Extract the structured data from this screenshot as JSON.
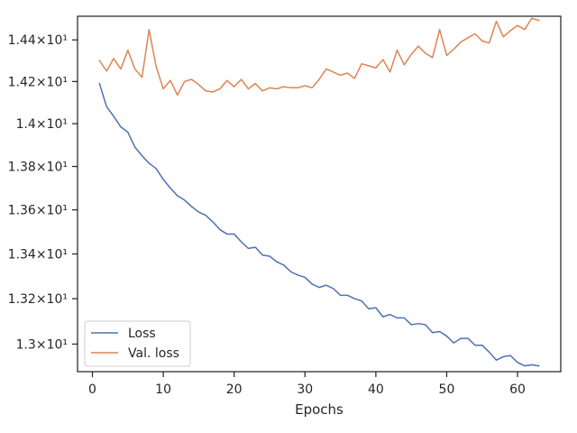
{
  "chart_data": {
    "type": "line",
    "title": "",
    "xlabel": "Epochs",
    "ylabel": "",
    "xlim": [
      -2.1,
      66.1
    ],
    "ylim": [
      12.88,
      14.515
    ],
    "y_scale": "log",
    "grid": false,
    "legend_position": "lower-left",
    "x_ticks": [
      0,
      10,
      20,
      30,
      40,
      50,
      60
    ],
    "x_tick_labels": [
      "0",
      "10",
      "20",
      "30",
      "40",
      "50",
      "60"
    ],
    "y_ticks": [
      13.0,
      13.2,
      13.4,
      13.6,
      13.8,
      14.0,
      14.2,
      14.4
    ],
    "y_tick_labels": [
      "1.3×10¹",
      "1.32×10¹",
      "1.34×10¹",
      "1.36×10¹",
      "1.38×10¹",
      "1.4×10¹",
      "1.42×10¹",
      "1.44×10¹"
    ],
    "x": [
      1,
      2,
      3,
      4,
      5,
      6,
      7,
      8,
      9,
      10,
      11,
      12,
      13,
      14,
      15,
      16,
      17,
      18,
      19,
      20,
      21,
      22,
      23,
      24,
      25,
      26,
      27,
      28,
      29,
      30,
      31,
      32,
      33,
      34,
      35,
      36,
      37,
      38,
      39,
      40,
      41,
      42,
      43,
      44,
      45,
      46,
      47,
      48,
      49,
      50,
      51,
      52,
      53,
      54,
      55,
      56,
      57,
      58,
      59,
      60,
      61,
      62,
      63
    ],
    "series": [
      {
        "name": "Loss",
        "color": "#4c72b0",
        "values": [
          14.19,
          14.08,
          14.035,
          13.985,
          13.96,
          13.89,
          13.85,
          13.815,
          13.79,
          13.74,
          13.7,
          13.665,
          13.645,
          13.615,
          13.59,
          13.575,
          13.545,
          13.51,
          13.49,
          13.49,
          13.455,
          13.425,
          13.43,
          13.395,
          13.39,
          13.365,
          13.35,
          13.32,
          13.305,
          13.295,
          13.265,
          13.25,
          13.26,
          13.245,
          13.215,
          13.215,
          13.2,
          13.19,
          13.155,
          13.16,
          13.12,
          13.13,
          13.115,
          13.115,
          13.085,
          13.09,
          13.085,
          13.05,
          13.055,
          13.035,
          13.005,
          13.025,
          13.025,
          12.995,
          12.995,
          12.965,
          12.93,
          12.945,
          12.95,
          12.92,
          12.905,
          12.91,
          12.905
        ]
      },
      {
        "name": "Val. loss",
        "color": "#dd8452",
        "values": [
          14.3,
          14.25,
          14.31,
          14.26,
          14.35,
          14.26,
          14.22,
          14.45,
          14.27,
          14.165,
          14.205,
          14.135,
          14.2,
          14.21,
          14.185,
          14.155,
          14.15,
          14.165,
          14.205,
          14.175,
          14.21,
          14.165,
          14.19,
          14.155,
          14.17,
          14.165,
          14.175,
          14.17,
          14.17,
          14.18,
          14.17,
          14.21,
          14.26,
          14.245,
          14.23,
          14.24,
          14.215,
          14.285,
          14.275,
          14.265,
          14.305,
          14.245,
          14.35,
          14.28,
          14.33,
          14.37,
          14.335,
          14.315,
          14.45,
          14.325,
          14.355,
          14.39,
          14.41,
          14.43,
          14.395,
          14.385,
          14.49,
          14.415,
          14.445,
          14.47,
          14.45,
          14.505,
          14.495
        ]
      }
    ]
  }
}
